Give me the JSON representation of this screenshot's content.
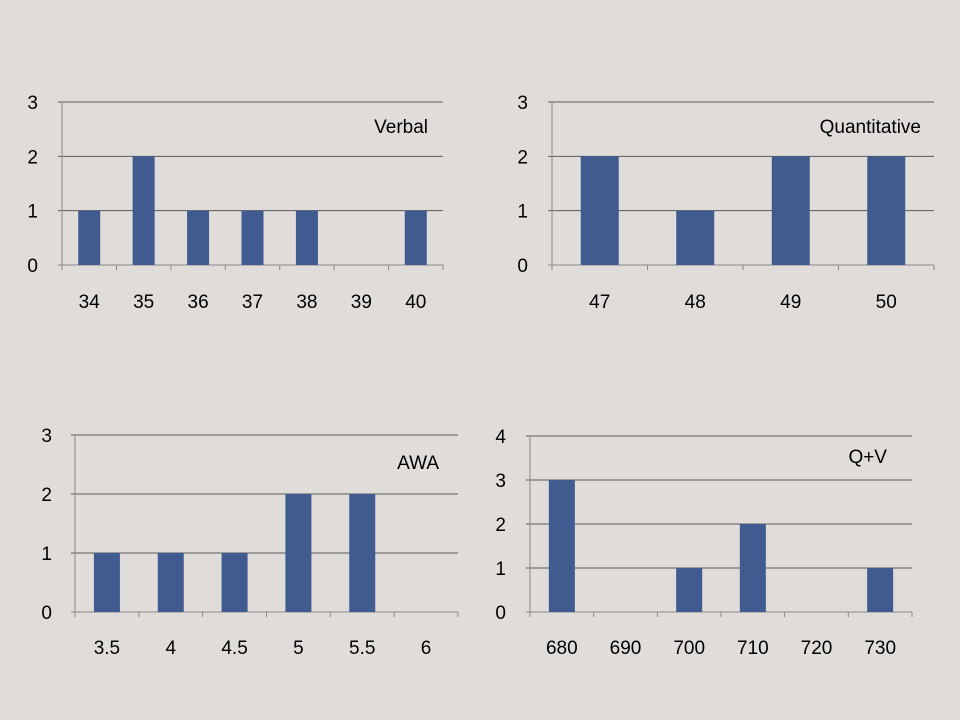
{
  "chart_data": [
    {
      "type": "bar",
      "title": "Verbal",
      "categories": [
        "34",
        "35",
        "36",
        "37",
        "38",
        "39",
        "40"
      ],
      "values": [
        1,
        2,
        1,
        1,
        1,
        0,
        1
      ],
      "yticks": [
        "0",
        "1",
        "2",
        "3"
      ],
      "ylim": [
        0,
        3
      ],
      "grid": true,
      "legend": "none",
      "bar_color": "#3f5b8f"
    },
    {
      "type": "bar",
      "title": "Quantitative",
      "categories": [
        "47",
        "48",
        "49",
        "50"
      ],
      "values": [
        2,
        1,
        2,
        2
      ],
      "yticks": [
        "0",
        "1",
        "2",
        "3"
      ],
      "ylim": [
        0,
        3
      ],
      "grid": true,
      "legend": "none",
      "bar_color": "#3f5b8f"
    },
    {
      "type": "bar",
      "title": "AWA",
      "categories": [
        "3.5",
        "4",
        "4.5",
        "5",
        "5.5",
        "6"
      ],
      "values": [
        1,
        1,
        1,
        2,
        2,
        0
      ],
      "yticks": [
        "0",
        "1",
        "2",
        "3"
      ],
      "ylim": [
        0,
        3
      ],
      "grid": true,
      "legend": "none",
      "bar_color": "#3f5b8f"
    },
    {
      "type": "bar",
      "title": "Q+V",
      "categories": [
        "680",
        "690",
        "700",
        "710",
        "720",
        "730"
      ],
      "values": [
        3,
        0,
        1,
        2,
        0,
        1
      ],
      "yticks": [
        "0",
        "1",
        "2",
        "3",
        "4"
      ],
      "ylim": [
        0,
        4
      ],
      "grid": true,
      "legend": "none",
      "bar_color": "#3f5b8f"
    }
  ]
}
